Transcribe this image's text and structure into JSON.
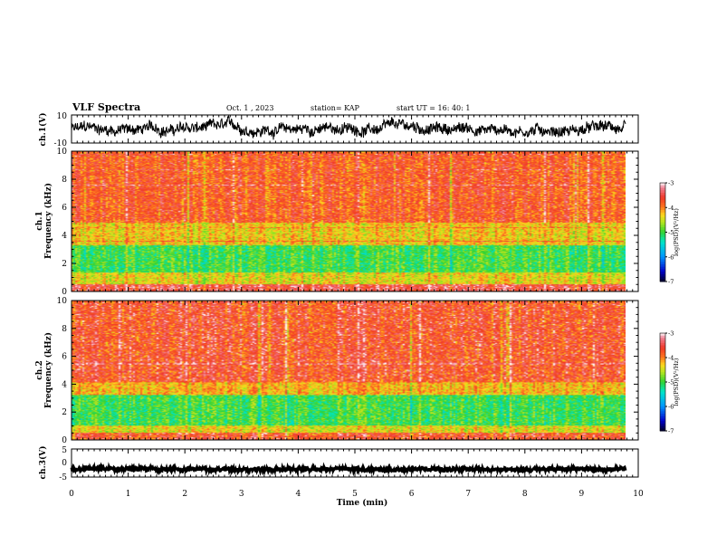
{
  "header": {
    "title": "VLF Spectra",
    "date": "Oct. 1 , 2023",
    "station": "station= KAP",
    "start": "start UT = 16: 40: 1"
  },
  "chart_data": [
    {
      "type": "line",
      "panel": "ch1_waveform",
      "ylabel": "ch.1(V)",
      "ylim": [
        -10,
        10
      ],
      "y_ticks": [
        "10",
        "-10"
      ],
      "xlim": [
        0,
        10
      ],
      "baseline_level": 0
    },
    {
      "type": "heatmap",
      "panel": "ch1_spectrogram",
      "ylabel_top": "ch.1",
      "ylabel": "Frequency (kHz)",
      "ylim": [
        0,
        10
      ],
      "y_ticks": [
        "0",
        "2",
        "4",
        "6",
        "8",
        "10"
      ],
      "xlim": [
        0,
        10
      ],
      "colorbar": {
        "label": "log(PSD)(V²/Hz)",
        "ticks": [
          "-3",
          "-4",
          "-5",
          "-6",
          "-7"
        ],
        "range": [
          -7,
          -3
        ]
      },
      "bands": [
        {
          "freq_khz": [
            0.0,
            0.5
          ],
          "level": -3.3
        },
        {
          "freq_khz": [
            0.5,
            1.3
          ],
          "level": -4.4
        },
        {
          "freq_khz": [
            1.3,
            3.3
          ],
          "level": -5.0
        },
        {
          "freq_khz": [
            3.3,
            4.9
          ],
          "level": -4.3
        },
        {
          "freq_khz": [
            4.9,
            10.0
          ],
          "level": -3.6
        }
      ]
    },
    {
      "type": "heatmap",
      "panel": "ch2_spectrogram",
      "ylabel_top": "ch.2",
      "ylabel": "Frequency (kHz)",
      "ylim": [
        0,
        10
      ],
      "y_ticks": [
        "0",
        "2",
        "4",
        "6",
        "8",
        "10"
      ],
      "xlim": [
        0,
        10
      ],
      "colorbar": {
        "label": "log(PSD)(V²/Hz)",
        "ticks": [
          "-3",
          "-4",
          "-5",
          "-6",
          "-7"
        ],
        "range": [
          -7,
          -3
        ]
      },
      "bands": [
        {
          "freq_khz": [
            0.0,
            0.5
          ],
          "level": -3.4
        },
        {
          "freq_khz": [
            0.5,
            1.0
          ],
          "level": -4.4
        },
        {
          "freq_khz": [
            1.0,
            3.2
          ],
          "level": -5.0
        },
        {
          "freq_khz": [
            3.2,
            4.2
          ],
          "level": -4.2
        },
        {
          "freq_khz": [
            4.2,
            10.0
          ],
          "level": -3.4
        }
      ]
    },
    {
      "type": "line",
      "panel": "ch3_waveform",
      "ylabel": "ch.3(V)",
      "ylim": [
        -5,
        5
      ],
      "y_ticks": [
        "5",
        "0",
        "-5"
      ],
      "xlim": [
        0,
        10
      ],
      "baseline_level": -2.2
    }
  ],
  "x_axis": {
    "xlabel": "Time (min)",
    "ticks": [
      "0",
      "1",
      "2",
      "3",
      "4",
      "5",
      "6",
      "7",
      "8",
      "9",
      "10"
    ]
  },
  "colors": {
    "hot": "#f03c28",
    "mid": "#ffd21e",
    "green": "#32d232",
    "cyan": "#28c8b4",
    "line": "#000000"
  }
}
